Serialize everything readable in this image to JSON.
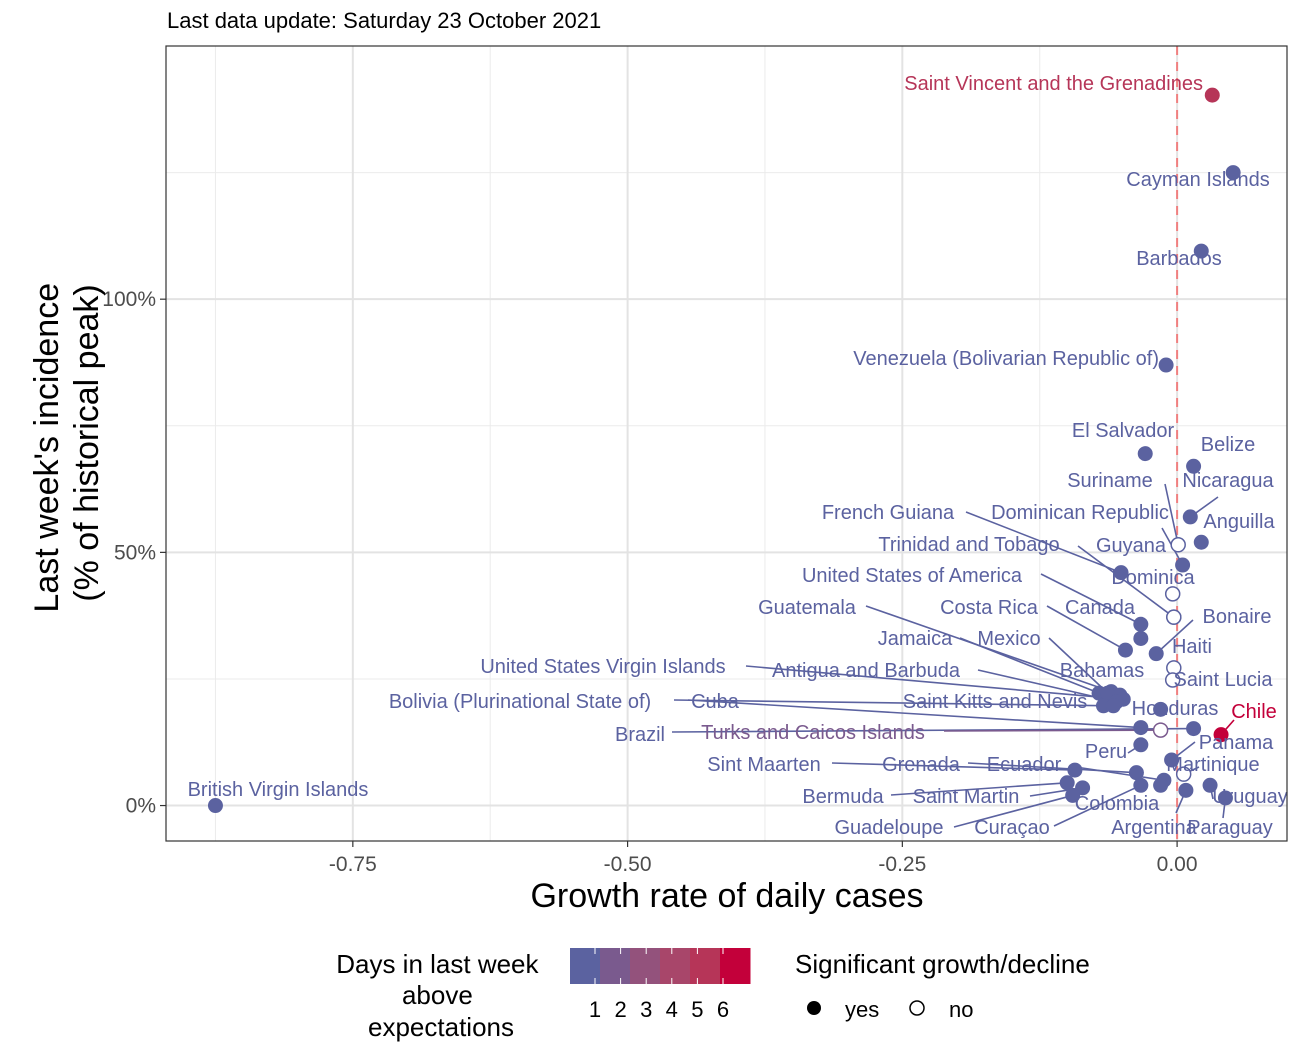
{
  "chart_data": {
    "type": "scatter",
    "subtitle": "Last data update: Saturday 23 October 2021",
    "xlabel": "Growth rate of daily cases",
    "ylabel": [
      "Last week's incidence",
      "(% of historical peak)"
    ],
    "xlim": [
      -0.92,
      0.1
    ],
    "ylim": [
      -0.07,
      1.5
    ],
    "x_ticks": [
      -0.75,
      -0.5,
      -0.25,
      0
    ],
    "x_tick_labels": [
      "-0.75",
      "-0.50",
      "-0.25",
      "0.00"
    ],
    "y_ticks": [
      0,
      0.5,
      1
    ],
    "y_tick_labels": [
      "0%",
      "50%",
      "100%"
    ],
    "reference_line_x": 0,
    "grid": true,
    "legend_position": "bottom",
    "color_legend": {
      "title": [
        "Days in last week",
        "above",
        "expectations"
      ],
      "labels": [
        "1",
        "2",
        "3",
        "4",
        "5",
        "6"
      ],
      "colors": [
        "#5b62a0",
        "#7a5a8e",
        "#93527c",
        "#a8466a",
        "#b63558",
        "#c3003a"
      ]
    },
    "shape_legend": {
      "title": "Significant growth/decline",
      "items": [
        "yes",
        "no"
      ]
    },
    "points": [
      {
        "name": "Saint Vincent and the Grenadines",
        "x": 0.032,
        "y": 1.403,
        "days": 5,
        "sig": true
      },
      {
        "name": "Cayman Islands",
        "x": 0.051,
        "y": 1.25,
        "days": 1,
        "sig": true
      },
      {
        "name": "Barbados",
        "x": 0.022,
        "y": 1.095,
        "days": 1,
        "sig": true
      },
      {
        "name": "Venezuela (Bolivarian Republic of)",
        "x": -0.01,
        "y": 0.87,
        "days": 1,
        "sig": true
      },
      {
        "name": "El Salvador",
        "x": -0.029,
        "y": 0.695,
        "days": 1,
        "sig": true
      },
      {
        "name": "Belize",
        "x": 0.015,
        "y": 0.67,
        "days": 1,
        "sig": true
      },
      {
        "name": "Nicaragua",
        "x": 0.012,
        "y": 0.57,
        "days": 1,
        "sig": true
      },
      {
        "name": "Anguilla",
        "x": 0.022,
        "y": 0.52,
        "days": 1,
        "sig": true
      },
      {
        "name": "Suriname",
        "x": 0.001,
        "y": 0.515,
        "days": 1,
        "sig": false
      },
      {
        "name": "Dominican Republic",
        "x": 0.005,
        "y": 0.475,
        "days": 1,
        "sig": true
      },
      {
        "name": "French Guiana",
        "x": -0.051,
        "y": 0.46,
        "days": 1,
        "sig": true
      },
      {
        "name": "Guyana",
        "x": -0.004,
        "y": 0.418,
        "days": 1,
        "sig": false
      },
      {
        "name": "Trinidad and Tobago",
        "x": -0.003,
        "y": 0.372,
        "days": 1,
        "sig": false
      },
      {
        "name": "Dominica",
        "x": -0.003,
        "y": 0.372,
        "days": 1,
        "sig": false
      },
      {
        "name": "United States of America",
        "x": -0.033,
        "y": 0.358,
        "days": 1,
        "sig": true
      },
      {
        "name": "Canada",
        "x": -0.033,
        "y": 0.33,
        "days": 1,
        "sig": true
      },
      {
        "name": "Costa Rica",
        "x": -0.047,
        "y": 0.307,
        "days": 1,
        "sig": true
      },
      {
        "name": "Bonaire",
        "x": -0.019,
        "y": 0.3,
        "days": 1,
        "sig": true
      },
      {
        "name": "Haiti",
        "x": -0.003,
        "y": 0.272,
        "days": 1,
        "sig": false
      },
      {
        "name": "Saint Lucia",
        "x": -0.004,
        "y": 0.248,
        "days": 1,
        "sig": false
      },
      {
        "name": "Guatemala",
        "x": -0.06,
        "y": 0.225,
        "days": 1,
        "sig": true
      },
      {
        "name": "Jamaica",
        "x": -0.071,
        "y": 0.222,
        "days": 1,
        "sig": true
      },
      {
        "name": "Mexico",
        "x": -0.063,
        "y": 0.222,
        "days": 1,
        "sig": true
      },
      {
        "name": "Bahamas",
        "x": -0.052,
        "y": 0.218,
        "days": 1,
        "sig": true
      },
      {
        "name": "United States Virgin Islands",
        "x": -0.049,
        "y": 0.21,
        "days": 1,
        "sig": true
      },
      {
        "name": "Antigua and Barbuda",
        "x": -0.055,
        "y": 0.205,
        "days": 1,
        "sig": true
      },
      {
        "name": "Saint Kitts and Nevis",
        "x": -0.067,
        "y": 0.197,
        "days": 1,
        "sig": true
      },
      {
        "name": "Bolivia (Plurinational State of)",
        "x": -0.058,
        "y": 0.197,
        "days": 1,
        "sig": true
      },
      {
        "name": "Honduras",
        "x": -0.015,
        "y": 0.19,
        "days": 1,
        "sig": true
      },
      {
        "name": "Cuba",
        "x": -0.033,
        "y": 0.154,
        "days": 1,
        "sig": true
      },
      {
        "name": "Brazil",
        "x": 0.015,
        "y": 0.152,
        "days": 1,
        "sig": true
      },
      {
        "name": "Turks and Caicos Islands",
        "x": -0.015,
        "y": 0.149,
        "days": 2,
        "sig": false
      },
      {
        "name": "Chile",
        "x": 0.04,
        "y": 0.14,
        "days": 6,
        "sig": true
      },
      {
        "name": "Peru",
        "x": -0.033,
        "y": 0.12,
        "days": 1,
        "sig": true
      },
      {
        "name": "Panama",
        "x": -0.005,
        "y": 0.09,
        "days": 1,
        "sig": true
      },
      {
        "name": "Martinique",
        "x": 0.006,
        "y": 0.062,
        "days": 1,
        "sig": false
      },
      {
        "name": "Sint Maarten",
        "x": -0.093,
        "y": 0.07,
        "days": 1,
        "sig": true
      },
      {
        "name": "Grenada",
        "x": -0.037,
        "y": 0.065,
        "days": 1,
        "sig": true
      },
      {
        "name": "Ecuador",
        "x": -0.012,
        "y": 0.05,
        "days": 1,
        "sig": true
      },
      {
        "name": "Colombia",
        "x": -0.015,
        "y": 0.04,
        "days": 1,
        "sig": true
      },
      {
        "name": "Bermuda",
        "x": -0.1,
        "y": 0.045,
        "days": 1,
        "sig": true
      },
      {
        "name": "Saint Martin",
        "x": -0.086,
        "y": 0.035,
        "days": 1,
        "sig": true
      },
      {
        "name": "Guadeloupe",
        "x": -0.095,
        "y": 0.02,
        "days": 1,
        "sig": true
      },
      {
        "name": "Curaçao",
        "x": -0.033,
        "y": 0.04,
        "days": 1,
        "sig": true
      },
      {
        "name": "Uruguay",
        "x": 0.03,
        "y": 0.04,
        "days": 1,
        "sig": true
      },
      {
        "name": "Paraguay",
        "x": 0.044,
        "y": 0.015,
        "days": 1,
        "sig": true
      },
      {
        "name": "Argentina",
        "x": 0.008,
        "y": 0.03,
        "days": 1,
        "sig": true
      },
      {
        "name": "British Virgin Islands",
        "x": -0.875,
        "y": 0.0,
        "days": 1,
        "sig": true
      }
    ]
  }
}
